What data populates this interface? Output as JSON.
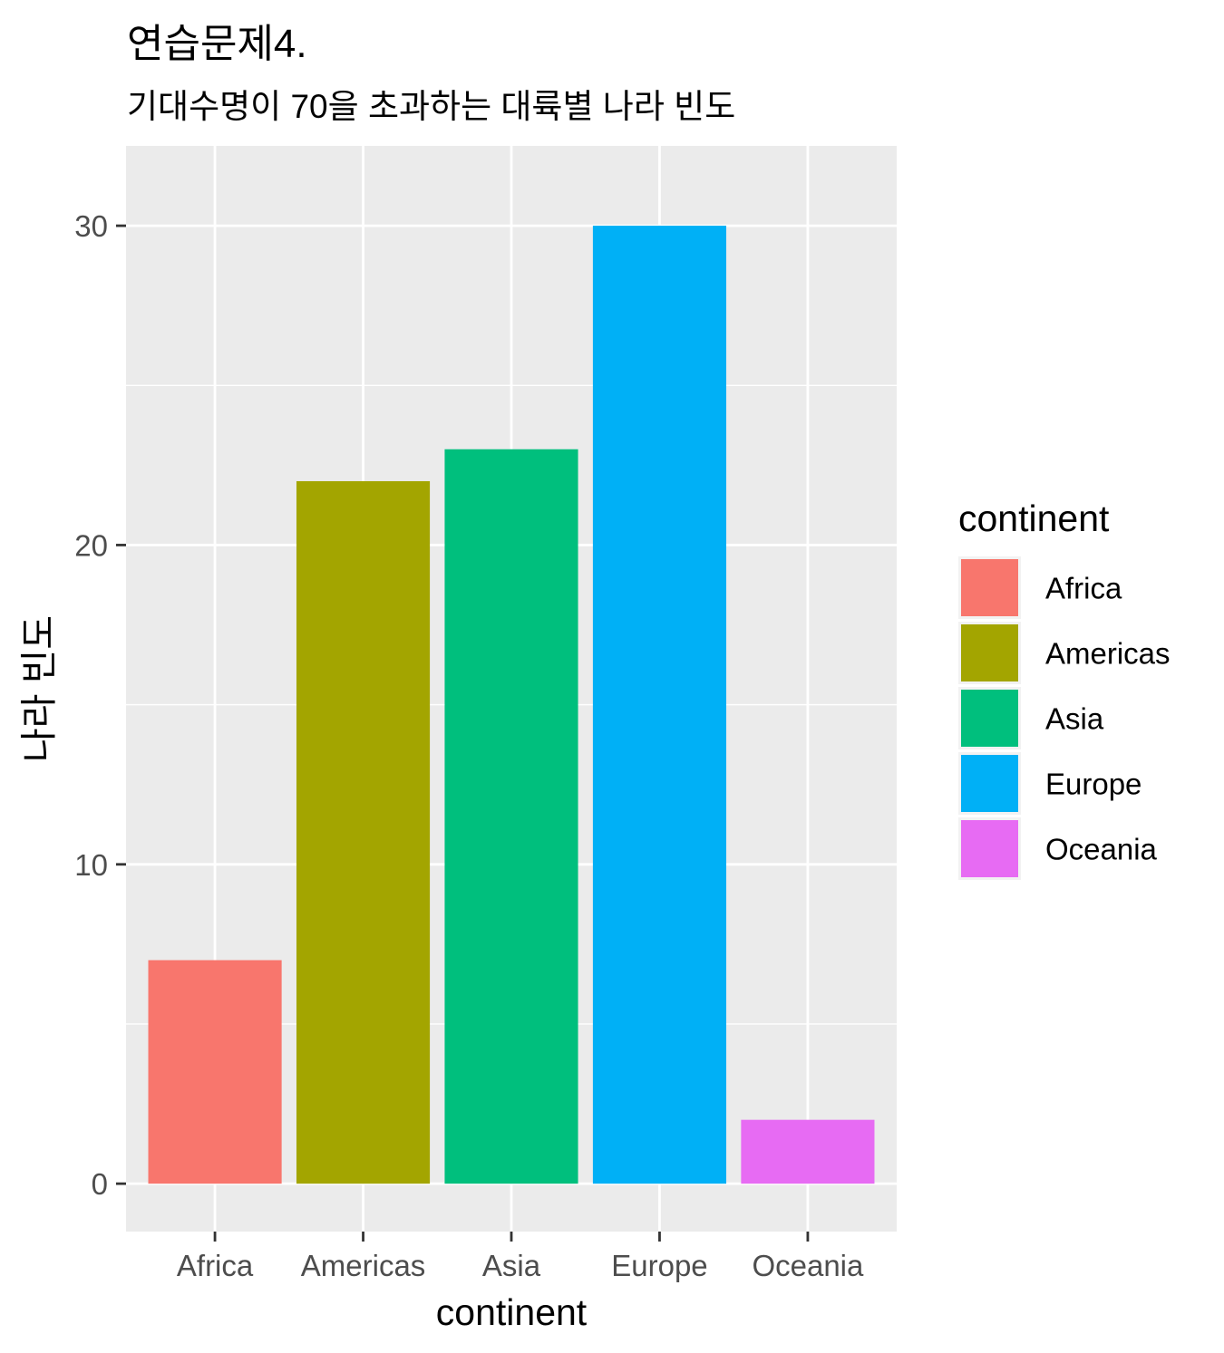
{
  "chart_data": {
    "type": "bar",
    "title": "연습문제4.",
    "subtitle": "기대수명이 70을 초과하는 대륙별 나라 빈도",
    "xlabel": "continent",
    "ylabel": "나라 빈도",
    "categories": [
      "Africa",
      "Americas",
      "Asia",
      "Europe",
      "Oceania"
    ],
    "values": [
      7,
      22,
      23,
      30,
      2
    ],
    "colors": [
      "#F8766D",
      "#A3A500",
      "#00BF7D",
      "#00B0F6",
      "#E76BF3"
    ],
    "ylim": [
      -1.5,
      32.5
    ],
    "yticks": [
      0,
      10,
      20,
      30
    ],
    "grid": true,
    "legend": {
      "title": "continent",
      "position": "right",
      "items": [
        "Africa",
        "Americas",
        "Asia",
        "Europe",
        "Oceania"
      ]
    }
  }
}
